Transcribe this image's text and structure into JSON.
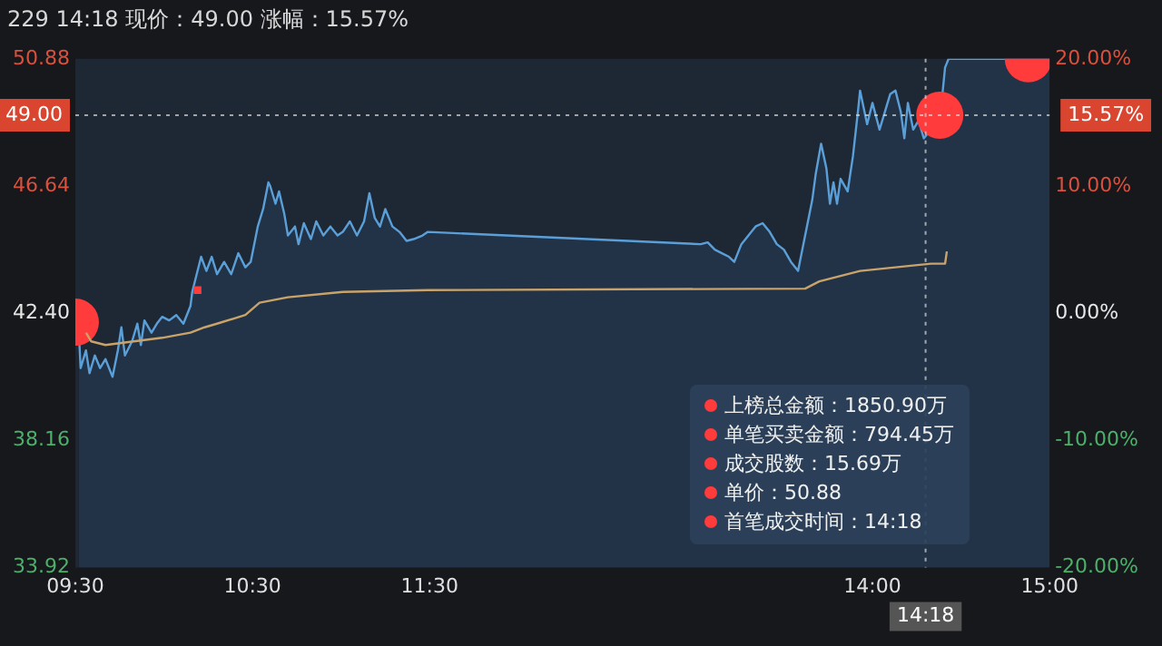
{
  "chart_data": {
    "type": "line",
    "title": "229 14:18 现价：49.00 涨幅：15.57%",
    "xlim": [
      9.5,
      15
    ],
    "xticks": [
      {
        "value": 9.5,
        "label": "09:30"
      },
      {
        "value": 10.5,
        "label": "10:30"
      },
      {
        "value": 11.5,
        "label": "11:30"
      },
      {
        "value": 14,
        "label": "14:00"
      },
      {
        "value": 15,
        "label": "15:00"
      }
    ],
    "ylim": [
      33.92,
      50.88
    ],
    "yticks": [
      33.92,
      38.16,
      {
        "value": 42.4,
        "label": "42.40"
      },
      46.64,
      50.88
    ],
    "y2lim": [
      -20,
      20
    ],
    "y2ticks": [
      {
        "value": -20,
        "label": "-20.00%"
      },
      {
        "value": -10,
        "label": "-10.00%"
      },
      {
        "value": 0,
        "label": "0.00%"
      },
      {
        "value": 10,
        "label": "10.00%"
      },
      {
        "value": 20,
        "label": "20.00%"
      }
    ],
    "grid": false,
    "legend": false,
    "series": [
      {
        "type": "area",
        "color": "#5b9fd8",
        "x": [
          9.52,
          9.53,
          9.56,
          9.58,
          9.61,
          9.64,
          9.67,
          9.71,
          9.74,
          9.76,
          9.78,
          9.82,
          9.85,
          9.87,
          9.89,
          9.93,
          9.96,
          9.99,
          10.03,
          10.07,
          10.11,
          10.15,
          10.16,
          10.19,
          10.21,
          10.24,
          10.27,
          10.3,
          10.34,
          10.38,
          10.42,
          10.46,
          10.49,
          10.53,
          10.56,
          10.59,
          10.6,
          10.63,
          10.65,
          10.68,
          10.7,
          10.74,
          10.76,
          10.79,
          10.83,
          10.86,
          10.9,
          10.94,
          10.98,
          11.01,
          11.05,
          11.09,
          11.13,
          11.16,
          11.19,
          11.22,
          11.25,
          11.29,
          11.33,
          11.37,
          11.41,
          11.46,
          11.49,
          13.03,
          13.07,
          13.11,
          13.15,
          13.19,
          13.22,
          13.26,
          13.3,
          13.34,
          13.38,
          13.42,
          13.46,
          13.5,
          13.54,
          13.58,
          13.62,
          13.66,
          13.68,
          13.71,
          13.74,
          13.76,
          13.78,
          13.8,
          13.82,
          13.86,
          13.89,
          13.92,
          13.93,
          13.97,
          14.0,
          14.04,
          14.07,
          14.1,
          14.13,
          14.16,
          14.18,
          14.2,
          14.23,
          14.26,
          14.29,
          14.33,
          14.38,
          14.39,
          14.41,
          14.43,
          14.88,
          15.0
        ],
        "values": [
          41.75,
          40.57,
          41.16,
          40.4,
          40.99,
          40.57,
          40.87,
          40.28,
          41.16,
          41.93,
          40.99,
          41.46,
          42.05,
          41.34,
          42.16,
          41.75,
          42.05,
          42.28,
          42.16,
          42.34,
          42.05,
          42.64,
          43.11,
          43.81,
          44.28,
          43.81,
          44.28,
          43.7,
          44.11,
          43.7,
          44.4,
          43.93,
          44.11,
          45.29,
          45.87,
          46.76,
          46.64,
          46.05,
          46.46,
          45.7,
          44.99,
          45.29,
          44.7,
          45.4,
          44.87,
          45.46,
          44.99,
          45.29,
          44.99,
          45.11,
          45.46,
          44.99,
          45.46,
          46.4,
          45.58,
          45.29,
          45.87,
          45.29,
          45.11,
          44.81,
          44.87,
          44.99,
          45.11,
          44.7,
          44.76,
          44.52,
          44.4,
          44.28,
          44.11,
          44.7,
          44.99,
          45.29,
          45.4,
          45.11,
          44.7,
          44.52,
          44.11,
          43.81,
          44.99,
          46.17,
          47.05,
          48.05,
          47.23,
          46.05,
          46.76,
          46.05,
          46.88,
          46.46,
          47.64,
          49.23,
          49.82,
          48.7,
          49.41,
          48.52,
          49.11,
          49.7,
          49.82,
          49.11,
          48.23,
          49.41,
          48.52,
          48.82,
          48.23,
          48.52,
          49.0,
          49.41,
          50.59,
          50.88,
          50.88,
          50.88
        ]
      },
      {
        "type": "line",
        "color": "#c9a36a",
        "x": [
          9.56,
          9.59,
          9.67,
          9.83,
          9.99,
          10.15,
          10.23,
          10.3,
          10.46,
          10.54,
          10.7,
          11.01,
          11.49,
          13.62,
          13.7,
          13.93,
          14.33,
          14.41,
          14.42
        ],
        "values": [
          41.75,
          41.46,
          41.34,
          41.46,
          41.58,
          41.75,
          41.93,
          42.05,
          42.34,
          42.75,
          42.93,
          43.11,
          43.17,
          43.22,
          43.46,
          43.81,
          44.05,
          44.05,
          44.46
        ]
      },
      {
        "type": "scatter",
        "marker": "circle",
        "color": "#ff3b3b",
        "x": [
          9.5,
          14.38,
          14.88
        ],
        "values": [
          42.1,
          49.0,
          50.88
        ]
      },
      {
        "type": "scatter",
        "marker": "square",
        "color": "#ff3b3b",
        "x": [
          10.19
        ],
        "values": [
          43.17
        ]
      }
    ],
    "ref_lines": [
      {
        "axis": "y",
        "value": 49.0,
        "label": "49.00"
      },
      {
        "axis": "x",
        "value": 14.3,
        "label": "14:18"
      }
    ],
    "annotations": [
      {
        "text": "15.57%",
        "x": 15,
        "y": 49.0
      },
      "上榜总金额：1850.90万",
      "单笔买卖金额：794.45万",
      "成交股数：15.69万",
      "单价：50.88",
      "首笔成交时间：14:18"
    ]
  }
}
